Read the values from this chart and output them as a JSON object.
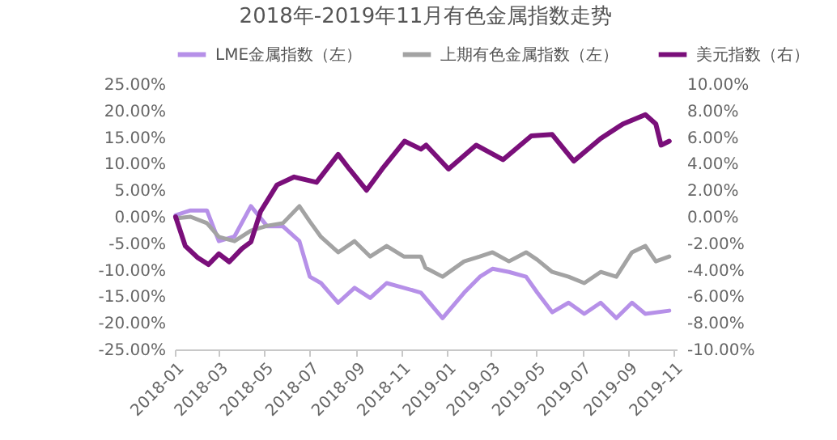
{
  "chart_data": {
    "type": "line",
    "title": "2018年-2019年11月有色金属指数走势",
    "xlim": [
      "2018-01-01",
      "2019-11-05"
    ],
    "xticks": [
      "2018-01",
      "2018-03",
      "2018-05",
      "2018-07",
      "2018-09",
      "2018-11",
      "2019-01",
      "2019-03",
      "2019-05",
      "2019-07",
      "2019-09",
      "2019-11"
    ],
    "ylim": [
      -25,
      25
    ],
    "yticks": [
      {
        "value": -25,
        "label": "-25.00%"
      },
      {
        "value": -20,
        "label": "-20.00%"
      },
      {
        "value": -15,
        "label": "-15.00%"
      },
      {
        "value": -10,
        "label": "-10.00%"
      },
      {
        "value": -5,
        "label": "-5.00%"
      },
      {
        "value": 0,
        "label": "0.00%"
      },
      {
        "value": 5,
        "label": "5.00%"
      },
      {
        "value": 10,
        "label": "10.00%"
      },
      {
        "value": 15,
        "label": "15.00%"
      },
      {
        "value": 20,
        "label": "20.00%"
      },
      {
        "value": 25,
        "label": "25.00%"
      }
    ],
    "y2lim": [
      -10,
      10
    ],
    "y2ticks": [
      {
        "value": -10,
        "label": "-10.00%"
      },
      {
        "value": -8,
        "label": "-8.00%"
      },
      {
        "value": -6,
        "label": "-6.00%"
      },
      {
        "value": -4,
        "label": "-4.00%"
      },
      {
        "value": -2,
        "label": "-2.00%"
      },
      {
        "value": 0,
        "label": "0.00%"
      },
      {
        "value": 2,
        "label": "2.00%"
      },
      {
        "value": 4,
        "label": "4.00%"
      },
      {
        "value": 6,
        "label": "6.00%"
      },
      {
        "value": 8,
        "label": "8.00%"
      },
      {
        "value": 10,
        "label": "10.00%"
      }
    ],
    "legend": "top",
    "grid": false,
    "marker": "none",
    "line_style": "solid",
    "series": [
      {
        "name": "LME金属指数（左）",
        "color": "#b690e8",
        "x": [
          "2018-01-02",
          "2018-01-22",
          "2018-02-13",
          "2018-03-01",
          "2018-03-22",
          "2018-04-13",
          "2018-05-05",
          "2018-05-26",
          "2018-06-17",
          "2018-07-01",
          "2018-07-16",
          "2018-08-08",
          "2018-08-30",
          "2018-09-20",
          "2018-10-12",
          "2018-11-04",
          "2018-11-27",
          "2018-12-03",
          "2018-12-26",
          "2019-01-24",
          "2019-02-14",
          "2019-03-03",
          "2019-03-25",
          "2019-04-17",
          "2019-05-02",
          "2019-05-22",
          "2019-06-13",
          "2019-07-04",
          "2019-07-26",
          "2019-08-16",
          "2019-09-06",
          "2019-09-24",
          "2019-10-26"
        ],
        "values": [
          0.3,
          1.2,
          1.2,
          -4.6,
          -3.7,
          2.0,
          -1.8,
          -1.8,
          -4.6,
          -11.3,
          -12.5,
          -16.2,
          -13.4,
          -15.3,
          -12.5,
          -13.4,
          -14.3,
          -15.3,
          -19.1,
          -14.3,
          -11.3,
          -9.8,
          -10.4,
          -11.3,
          -14.3,
          -18,
          -16.2,
          -18.3,
          -16.2,
          -19.1,
          -16.2,
          -18.3,
          -17.7
        ]
      },
      {
        "name": "上期有色金属指数（左）",
        "color": "#a3a3a3",
        "x": [
          "2018-01-02",
          "2018-01-22",
          "2018-02-13",
          "2018-03-01",
          "2018-03-22",
          "2018-04-13",
          "2018-05-05",
          "2018-05-26",
          "2018-06-17",
          "2018-07-01",
          "2018-07-16",
          "2018-08-08",
          "2018-08-30",
          "2018-09-20",
          "2018-10-12",
          "2018-11-04",
          "2018-11-27",
          "2018-12-03",
          "2018-12-26",
          "2019-01-24",
          "2019-02-14",
          "2019-03-03",
          "2019-03-25",
          "2019-04-17",
          "2019-05-02",
          "2019-05-22",
          "2019-06-13",
          "2019-07-04",
          "2019-07-26",
          "2019-08-16",
          "2019-09-06",
          "2019-09-24",
          "2019-10-08",
          "2019-10-26"
        ],
        "values": [
          -0.3,
          0,
          -1.2,
          -3.8,
          -4.6,
          -2.6,
          -1.7,
          -1.2,
          2.0,
          -0.9,
          -3.8,
          -6.7,
          -4.6,
          -7.5,
          -5.5,
          -7.5,
          -7.5,
          -9.6,
          -11.3,
          -8.4,
          -7.5,
          -6.7,
          -8.4,
          -6.7,
          -8.1,
          -10.4,
          -11.3,
          -12.5,
          -10.4,
          -11.3,
          -6.7,
          -5.5,
          -8.4,
          -7.5
        ]
      },
      {
        "name": "美元指数（右）",
        "color": "#7a0f7a",
        "axis": "y2",
        "x": [
          "2018-01-02",
          "2018-01-15",
          "2018-02-01",
          "2018-02-15",
          "2018-03-01",
          "2018-03-15",
          "2018-04-01",
          "2018-04-13",
          "2018-04-26",
          "2018-05-18",
          "2018-06-10",
          "2018-07-10",
          "2018-08-08",
          "2018-08-23",
          "2018-09-15",
          "2018-10-06",
          "2018-11-05",
          "2018-11-27",
          "2018-12-04",
          "2019-01-03",
          "2019-02-09",
          "2019-03-17",
          "2019-04-24",
          "2019-05-22",
          "2019-06-20",
          "2019-07-26",
          "2019-08-25",
          "2019-09-24",
          "2019-10-08",
          "2019-10-15",
          "2019-10-26"
        ],
        "values": [
          0,
          -2.2,
          -3.1,
          -3.6,
          -2.8,
          -3.4,
          -2.4,
          -1.9,
          0.4,
          2.4,
          3.0,
          2.6,
          4.7,
          3.6,
          2.0,
          3.6,
          5.7,
          5.1,
          5.4,
          3.6,
          5.4,
          4.3,
          6.1,
          6.2,
          4.2,
          5.9,
          7.0,
          7.7,
          7.0,
          5.4,
          5.7
        ]
      }
    ]
  }
}
